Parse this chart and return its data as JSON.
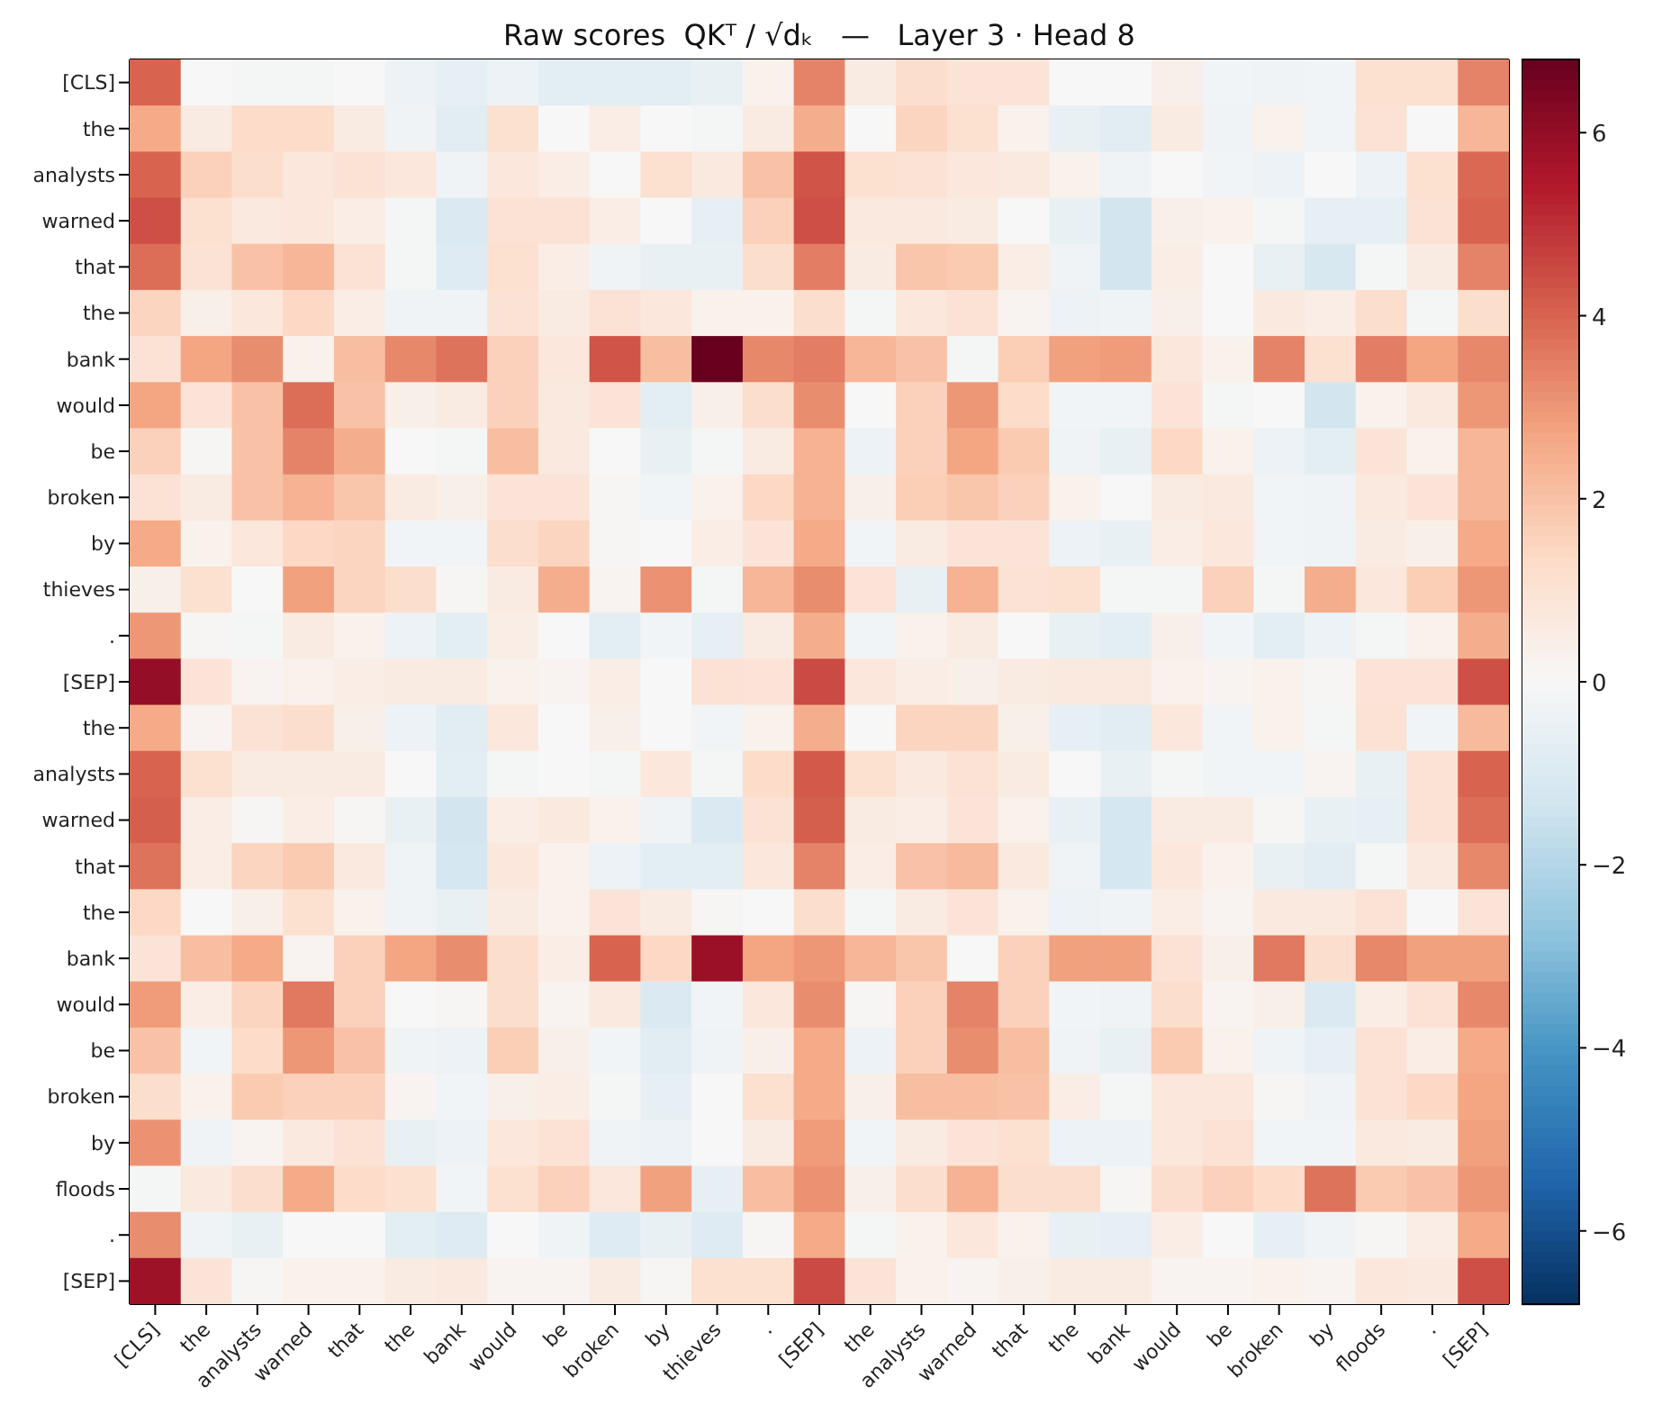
{
  "chart_data": {
    "type": "heatmap",
    "title": "Raw scores  QKᵀ / √dₖ   —   Layer 3 · Head 8",
    "categories": [
      "[CLS]",
      "the",
      "analysts",
      "warned",
      "that",
      "the",
      "bank",
      "would",
      "be",
      "broken",
      "by",
      "thieves",
      ".",
      "[SEP]",
      "the",
      "analysts",
      "warned",
      "that",
      "the",
      "bank",
      "would",
      "be",
      "broken",
      "by",
      "floods",
      ".",
      "[SEP]"
    ],
    "y_categories": [
      "[CLS]",
      "the",
      "analysts",
      "warned",
      "that",
      "the",
      "bank",
      "would",
      "be",
      "broken",
      "by",
      "thieves",
      ".",
      "[SEP]",
      "the",
      "analysts",
      "warned",
      "that",
      "the",
      "bank",
      "would",
      "be",
      "broken",
      "by",
      "floods",
      ".",
      "[SEP]"
    ],
    "cells": [
      [
        4.0,
        0,
        -0.1,
        -0.1,
        0,
        -0.4,
        -0.6,
        -0.4,
        -0.7,
        -0.7,
        -0.7,
        -0.5,
        0.3,
        3.4,
        0.6,
        1.2,
        0.9,
        0.9,
        0,
        0,
        0.4,
        -0.2,
        -0.3,
        -0.2,
        1.1,
        1.1,
        3.4
      ],
      [
        2.6,
        0.6,
        1.3,
        1.3,
        0.6,
        -0.3,
        -0.8,
        1.1,
        0,
        0.5,
        0,
        -0.1,
        0.6,
        2.5,
        0,
        1.5,
        1.1,
        0.3,
        -0.5,
        -0.8,
        0.6,
        -0.3,
        0.3,
        -0.2,
        1.0,
        0,
        2.3
      ],
      [
        4.0,
        1.6,
        1.2,
        0.8,
        1.0,
        0.8,
        -0.3,
        0.8,
        0.5,
        0,
        1.1,
        0.7,
        2.0,
        4.3,
        1.1,
        1.0,
        0.8,
        0.7,
        0.3,
        -0.3,
        0,
        -0.2,
        -0.4,
        0,
        -0.4,
        1.1,
        3.9
      ],
      [
        4.4,
        1.1,
        0.7,
        0.8,
        0.5,
        -0.1,
        -1.0,
        1.0,
        1.0,
        0.5,
        0,
        -0.6,
        1.6,
        4.4,
        0.7,
        0.7,
        0.6,
        0,
        -0.5,
        -1.3,
        0.4,
        0.3,
        -0.1,
        -0.6,
        -0.6,
        1.0,
        4.0
      ],
      [
        3.8,
        1.0,
        2.0,
        2.3,
        1.0,
        -0.1,
        -0.9,
        1.1,
        0.5,
        -0.3,
        -0.5,
        -0.5,
        1.2,
        3.5,
        0.6,
        1.9,
        1.8,
        0.5,
        -0.3,
        -1.3,
        0.5,
        0,
        -0.5,
        -1.1,
        -0.1,
        0.6,
        3.4
      ],
      [
        1.5,
        0.4,
        0.8,
        1.4,
        0.5,
        -0.3,
        -0.3,
        1.0,
        0.6,
        1.0,
        0.8,
        0.3,
        0.3,
        1.2,
        -0.1,
        0.8,
        1.0,
        0.2,
        -0.4,
        -0.3,
        0.4,
        0,
        0.7,
        0.5,
        1.2,
        -0.1,
        1.2
      ],
      [
        1.0,
        2.7,
        3.2,
        0.3,
        2.1,
        3.3,
        3.7,
        1.6,
        0.8,
        4.3,
        2.1,
        6.8,
        3.3,
        3.5,
        2.3,
        2.0,
        -0.1,
        1.7,
        2.8,
        2.9,
        0.8,
        0.3,
        3.4,
        1.1,
        3.5,
        2.7,
        3.3
      ],
      [
        2.7,
        0.9,
        2.0,
        3.8,
        2.0,
        0.4,
        0.6,
        1.6,
        0.7,
        0.9,
        -0.7,
        0.4,
        1.2,
        3.2,
        0,
        1.6,
        3.0,
        1.3,
        -0.2,
        -0.2,
        0.9,
        -0.1,
        0,
        -1.3,
        0.3,
        0.7,
        3.0
      ],
      [
        1.6,
        0.1,
        2.0,
        3.4,
        2.5,
        0,
        -0.1,
        2.1,
        0.7,
        0,
        -0.5,
        -0.1,
        0.6,
        2.4,
        -0.4,
        1.6,
        2.7,
        1.8,
        -0.3,
        -0.5,
        1.4,
        0.3,
        -0.4,
        -0.7,
        0.9,
        0.3,
        2.3
      ],
      [
        1.0,
        0.6,
        2.0,
        2.4,
        1.9,
        0.6,
        0.4,
        0.9,
        0.9,
        0.1,
        -0.2,
        0.3,
        1.4,
        2.4,
        0.4,
        1.7,
        1.9,
        1.6,
        0.3,
        0,
        0.6,
        0.7,
        -0.2,
        -0.3,
        0.7,
        0.9,
        2.3
      ],
      [
        2.6,
        0.3,
        0.8,
        1.4,
        1.5,
        -0.2,
        -0.2,
        1.2,
        1.5,
        0.1,
        0,
        0.5,
        0.9,
        2.6,
        -0.2,
        0.6,
        0.9,
        0.9,
        -0.4,
        -0.5,
        0.5,
        0.8,
        -0.2,
        -0.3,
        0.6,
        0.4,
        2.6
      ],
      [
        0.4,
        1.1,
        0,
        2.8,
        1.5,
        1.2,
        0.1,
        0.6,
        2.5,
        0.2,
        3.1,
        -0.1,
        2.3,
        3.2,
        0.9,
        -0.5,
        2.4,
        1.0,
        1.1,
        -0.1,
        -0.1,
        1.6,
        -0.1,
        2.5,
        0.8,
        1.7,
        3.0
      ],
      [
        3.0,
        0.1,
        -0.1,
        0.6,
        0.3,
        -0.4,
        -0.7,
        0.5,
        0,
        -0.7,
        -0.2,
        -0.6,
        0.6,
        2.5,
        -0.2,
        0.3,
        0.6,
        0,
        -0.5,
        -0.7,
        0.4,
        -0.2,
        -0.7,
        -0.4,
        -0.1,
        0.3,
        2.5
      ],
      [
        6.0,
        0.9,
        0.2,
        0.3,
        0.5,
        0.6,
        0.6,
        0.3,
        0.2,
        0.5,
        0,
        1.0,
        0.9,
        4.5,
        0.8,
        0.5,
        0.4,
        0.6,
        0.7,
        0.7,
        0.3,
        0.2,
        0.3,
        0.1,
        0.9,
        0.9,
        4.4
      ],
      [
        2.6,
        0.2,
        1.0,
        1.2,
        0.4,
        -0.4,
        -0.8,
        0.8,
        0,
        0.4,
        0,
        -0.2,
        0.3,
        2.5,
        0,
        1.5,
        1.5,
        0.4,
        -0.6,
        -0.8,
        0.8,
        -0.2,
        0.3,
        -0.1,
        1.0,
        -0.2,
        2.2
      ],
      [
        4.0,
        1.1,
        0.6,
        0.6,
        0.6,
        0,
        -0.7,
        -0.1,
        0,
        -0.1,
        0.8,
        -0.1,
        1.3,
        4.2,
        1.1,
        0.7,
        1.0,
        0.6,
        0,
        -0.5,
        -0.1,
        -0.2,
        -0.2,
        0.2,
        -0.5,
        1.0,
        4.0
      ],
      [
        4.1,
        0.5,
        0.1,
        0.5,
        0.1,
        -0.5,
        -1.3,
        0.5,
        0.7,
        0.3,
        -0.3,
        -1.0,
        1.0,
        4.1,
        0.6,
        0.5,
        0.9,
        0.3,
        -0.5,
        -1.2,
        0.6,
        0.6,
        0.1,
        -0.5,
        -0.6,
        1.0,
        3.8
      ],
      [
        3.7,
        0.5,
        1.5,
        1.8,
        0.7,
        -0.3,
        -1.2,
        0.8,
        0.3,
        -0.4,
        -0.7,
        -0.7,
        0.8,
        3.4,
        0.5,
        2.0,
        2.2,
        0.7,
        -0.3,
        -1.2,
        0.8,
        0.3,
        -0.5,
        -0.8,
        -0.1,
        0.7,
        3.3
      ],
      [
        1.4,
        0,
        0.4,
        1.1,
        0.3,
        -0.3,
        -0.5,
        0.6,
        0.3,
        0.9,
        0.6,
        0.1,
        0,
        1.2,
        -0.1,
        0.6,
        0.9,
        0.3,
        -0.4,
        -0.3,
        0.5,
        0.2,
        0.7,
        0.7,
        1.0,
        0,
        0.9
      ],
      [
        0.9,
        2.1,
        2.6,
        0.2,
        1.6,
        2.7,
        3.2,
        1.2,
        0.5,
        4.0,
        1.4,
        5.9,
        2.7,
        3.0,
        2.3,
        1.9,
        0,
        1.6,
        2.8,
        2.8,
        1.0,
        0.4,
        3.6,
        1.2,
        3.3,
        2.8,
        2.8
      ],
      [
        2.9,
        0.5,
        1.5,
        3.6,
        1.6,
        0,
        0.1,
        1.2,
        0.2,
        0.7,
        -1.0,
        -0.2,
        0.8,
        3.2,
        0.1,
        1.6,
        3.4,
        1.6,
        -0.2,
        -0.3,
        1.2,
        0.2,
        0.4,
        -1.0,
        0.5,
        1.0,
        3.3
      ],
      [
        2.0,
        -0.2,
        1.3,
        3.0,
        2.0,
        -0.3,
        -0.4,
        1.7,
        0.4,
        -0.2,
        -0.8,
        -0.3,
        0.4,
        2.6,
        -0.4,
        1.6,
        3.2,
        2.1,
        -0.3,
        -0.5,
        1.8,
        0.3,
        -0.3,
        -0.6,
        1.0,
        0.5,
        2.6
      ],
      [
        1.2,
        0.3,
        1.8,
        1.6,
        1.6,
        0.2,
        -0.2,
        0.4,
        0.5,
        -0.1,
        -0.6,
        0,
        1.1,
        2.6,
        0.4,
        2.1,
        2.1,
        2.0,
        0.5,
        -0.1,
        0.8,
        0.8,
        0.1,
        -0.3,
        1.0,
        1.4,
        2.7
      ],
      [
        3.1,
        -0.3,
        0.2,
        0.7,
        1.0,
        -0.5,
        -0.4,
        0.8,
        1.0,
        -0.3,
        -0.4,
        0,
        0.6,
        2.9,
        -0.2,
        0.6,
        0.9,
        1.1,
        -0.4,
        -0.4,
        0.8,
        1.0,
        -0.2,
        -0.2,
        0.7,
        0.6,
        2.8
      ],
      [
        -0.1,
        0.7,
        1.2,
        2.6,
        1.3,
        1.1,
        -0.2,
        1.1,
        1.6,
        0.8,
        2.8,
        -0.6,
        2.1,
        3.1,
        0.4,
        1.2,
        2.4,
        1.2,
        1.2,
        0.1,
        1.2,
        1.6,
        1.3,
        3.7,
        1.8,
        2.0,
        3.0
      ],
      [
        3.2,
        -0.3,
        -0.5,
        0,
        0,
        -0.7,
        -0.9,
        0,
        -0.3,
        -0.9,
        -0.5,
        -0.9,
        0.1,
        2.6,
        -0.1,
        0.3,
        0.8,
        0.3,
        -0.5,
        -0.6,
        0.5,
        0,
        -0.6,
        -0.3,
        0.1,
        0.5,
        2.6
      ],
      [
        5.8,
        0.9,
        0.1,
        0.3,
        0.3,
        0.6,
        0.7,
        0.2,
        0.2,
        0.6,
        0.1,
        1.1,
        1.1,
        4.5,
        0.9,
        0.3,
        0.2,
        0.4,
        0.6,
        0.6,
        0.2,
        0.2,
        0.3,
        0.2,
        0.8,
        0.7,
        4.4
      ]
    ],
    "clim": [
      -6.8,
      6.8
    ],
    "cticks": [
      {
        "value": -6,
        "label": "−6"
      },
      {
        "value": -4,
        "label": "−4"
      },
      {
        "value": -2,
        "label": "−2"
      },
      0,
      2,
      4,
      6
    ]
  }
}
